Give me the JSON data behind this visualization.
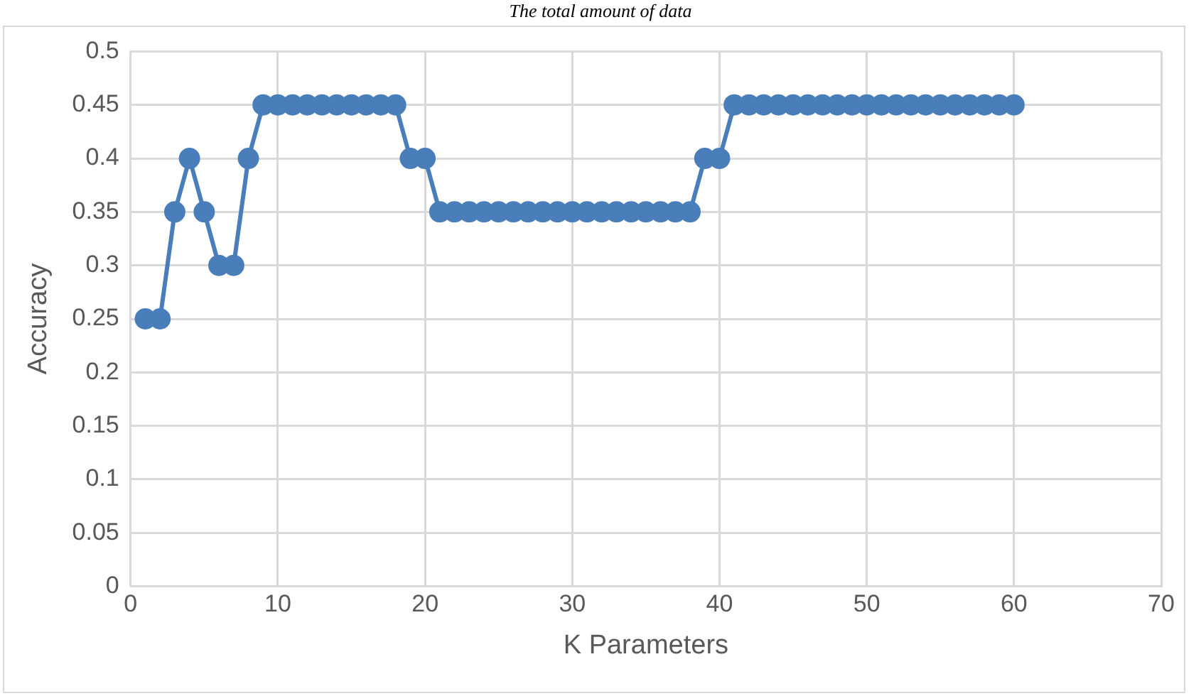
{
  "chart_data": {
    "type": "line",
    "title": "The total amount of data",
    "xlabel": "K Parameters",
    "ylabel": "Accuracy",
    "x": [
      1,
      2,
      3,
      4,
      5,
      6,
      7,
      8,
      9,
      10,
      11,
      12,
      13,
      14,
      15,
      16,
      17,
      18,
      19,
      20,
      21,
      22,
      23,
      24,
      25,
      26,
      27,
      28,
      29,
      30,
      31,
      32,
      33,
      34,
      35,
      36,
      37,
      38,
      39,
      40,
      41,
      42,
      43,
      44,
      45,
      46,
      47,
      48,
      49,
      50,
      51,
      52,
      53,
      54,
      55,
      56,
      57,
      58,
      59,
      60
    ],
    "series": [
      {
        "color": "#4a7ebb",
        "values": [
          0.25,
          0.25,
          0.35,
          0.4,
          0.35,
          0.3,
          0.3,
          0.4,
          0.45,
          0.45,
          0.45,
          0.45,
          0.45,
          0.45,
          0.45,
          0.45,
          0.45,
          0.45,
          0.4,
          0.4,
          0.35,
          0.35,
          0.35,
          0.35,
          0.35,
          0.35,
          0.35,
          0.35,
          0.35,
          0.35,
          0.35,
          0.35,
          0.35,
          0.35,
          0.35,
          0.35,
          0.35,
          0.35,
          0.4,
          0.4,
          0.45,
          0.45,
          0.45,
          0.45,
          0.45,
          0.45,
          0.45,
          0.45,
          0.45,
          0.45,
          0.45,
          0.45,
          0.45,
          0.45,
          0.45,
          0.45,
          0.45,
          0.45,
          0.45,
          0.45
        ]
      }
    ],
    "xlim": [
      0,
      70
    ],
    "xticks": [
      0,
      10,
      20,
      30,
      40,
      50,
      60,
      70
    ],
    "ylim": [
      0,
      0.5
    ],
    "yticks": [
      0,
      0.05,
      0.1,
      0.15,
      0.2,
      0.25,
      0.3,
      0.35,
      0.4,
      0.45,
      0.5
    ],
    "grid": true,
    "legend": false,
    "marker": "circle",
    "line_style": "solid"
  }
}
